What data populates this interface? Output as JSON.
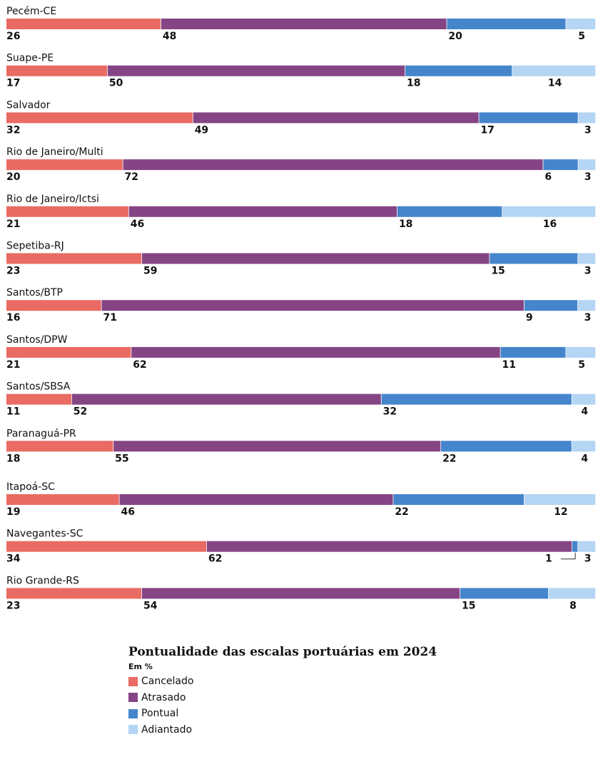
{
  "chart_data": {
    "type": "stacked-bar-horizontal",
    "title": "Pontualidade das escalas portuárias em 2024",
    "unit": "Em %",
    "series": [
      {
        "name": "Cancelado",
        "color": "#e96b63"
      },
      {
        "name": "Atrasado",
        "color": "#854585"
      },
      {
        "name": "Pontual",
        "color": "#4585cc"
      },
      {
        "name": "Adiantado",
        "color": "#b4d5f3"
      }
    ],
    "categories": [
      {
        "name": "Pecém-CE",
        "values": [
          26,
          48,
          20,
          5
        ]
      },
      {
        "name": "Suape-PE",
        "values": [
          17,
          50,
          18,
          14
        ]
      },
      {
        "name": "Salvador",
        "values": [
          32,
          49,
          17,
          3
        ]
      },
      {
        "name": "Rio de Janeiro/Multi",
        "values": [
          20,
          72,
          6,
          3
        ]
      },
      {
        "name": "Rio de Janeiro/Ictsi",
        "values": [
          21,
          46,
          18,
          16
        ]
      },
      {
        "name": "Sepetiba-RJ",
        "values": [
          23,
          59,
          15,
          3
        ]
      },
      {
        "name": "Santos/BTP",
        "values": [
          16,
          71,
          9,
          3
        ]
      },
      {
        "name": "Santos/DPW",
        "values": [
          21,
          62,
          11,
          5
        ]
      },
      {
        "name": "Santos/SBSA",
        "values": [
          11,
          52,
          32,
          4
        ]
      },
      {
        "name": "Paranaguá-PR",
        "values": [
          18,
          55,
          22,
          4
        ]
      },
      {
        "name": "Itapoá-SC",
        "values": [
          19,
          46,
          22,
          12
        ]
      },
      {
        "name": "Navegantes-SC",
        "values": [
          34,
          62,
          1,
          3
        ]
      },
      {
        "name": "Rio Grande-RS",
        "values": [
          23,
          54,
          15,
          8
        ]
      }
    ]
  }
}
